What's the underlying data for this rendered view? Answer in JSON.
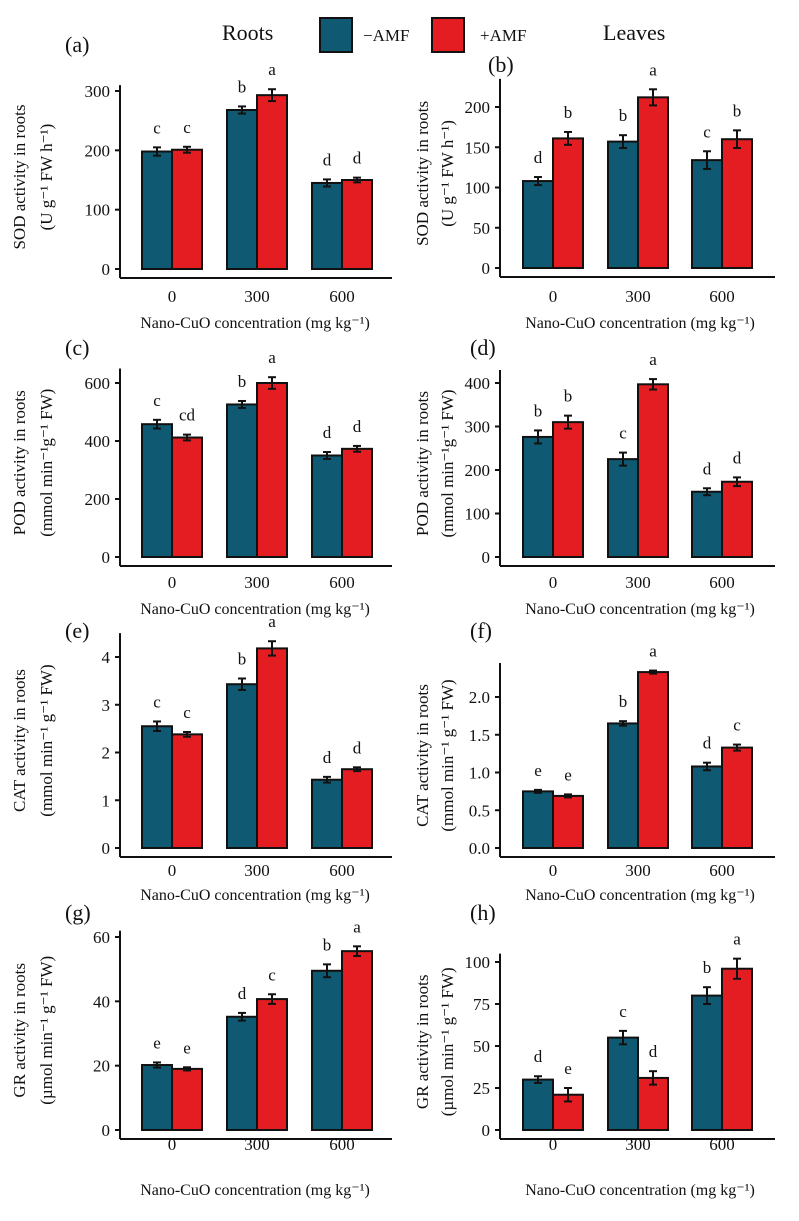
{
  "legend": {
    "roots_label": "Roots",
    "leaves_label": "Leaves",
    "series": [
      {
        "name": "−AMF",
        "color": "#0f5a72"
      },
      {
        "name": "+AMF",
        "color": "#e41d22"
      }
    ]
  },
  "chart_data": [
    {
      "panel": "(a)",
      "type": "bar",
      "ylabel": [
        "SOD activity in roots",
        "(U g⁻¹ FW h⁻¹)"
      ],
      "xlabel": "Nano-CuO concentration (mg kg⁻¹)",
      "categories": [
        "0",
        "300",
        "600"
      ],
      "yticks": [
        0,
        100,
        200,
        300
      ],
      "ylim": [
        0,
        310
      ],
      "series": [
        {
          "name": "−AMF",
          "values": [
            198,
            268,
            145
          ],
          "errors": [
            7,
            6,
            6
          ],
          "letters": [
            "c",
            "b",
            "d"
          ]
        },
        {
          "name": "+AMF",
          "values": [
            201,
            293,
            150
          ],
          "errors": [
            5,
            10,
            4
          ],
          "letters": [
            "c",
            "a",
            "d"
          ]
        }
      ]
    },
    {
      "panel": "(b)",
      "type": "bar",
      "ylabel": [
        "SOD activity in roots",
        "(U g⁻¹ FW h⁻¹)"
      ],
      "xlabel": "Nano-CuO concentration (mg kg⁻¹)",
      "categories": [
        "0",
        "300",
        "600"
      ],
      "yticks": [
        0,
        50,
        100,
        150,
        200
      ],
      "ylim": [
        0,
        235
      ],
      "series": [
        {
          "name": "−AMF",
          "values": [
            108,
            157,
            134
          ],
          "errors": [
            5,
            8,
            11
          ],
          "letters": [
            "d",
            "b",
            "c"
          ]
        },
        {
          "name": "+AMF",
          "values": [
            161,
            212,
            160
          ],
          "errors": [
            8,
            10,
            11
          ],
          "letters": [
            "b",
            "a",
            "b"
          ]
        }
      ]
    },
    {
      "panel": "(c)",
      "type": "bar",
      "ylabel": [
        "POD activity in roots",
        "(mmol min⁻¹g⁻¹ FW)"
      ],
      "xlabel": "Nano-CuO concentration (mg kg⁻¹)",
      "categories": [
        "0",
        "300",
        "600"
      ],
      "yticks": [
        0,
        200,
        400,
        600
      ],
      "ylim": [
        0,
        650
      ],
      "series": [
        {
          "name": "−AMF",
          "values": [
            458,
            526,
            350
          ],
          "errors": [
            15,
            12,
            12
          ],
          "letters": [
            "c",
            "b",
            "d"
          ]
        },
        {
          "name": "+AMF",
          "values": [
            412,
            600,
            373
          ],
          "errors": [
            10,
            20,
            10
          ],
          "letters": [
            "cd",
            "a",
            "d"
          ]
        }
      ]
    },
    {
      "panel": "(d)",
      "type": "bar",
      "ylabel": [
        "POD activity in roots",
        "(mmol min⁻¹g⁻¹ FW)"
      ],
      "xlabel": "Nano-CuO concentration (mg kg⁻¹)",
      "categories": [
        "0",
        "300",
        "600"
      ],
      "yticks": [
        0,
        100,
        200,
        300,
        400
      ],
      "ylim": [
        0,
        430
      ],
      "series": [
        {
          "name": "−AMF",
          "values": [
            276,
            225,
            150
          ],
          "errors": [
            15,
            15,
            8
          ],
          "letters": [
            "b",
            "c",
            "d"
          ]
        },
        {
          "name": "+AMF",
          "values": [
            310,
            397,
            173
          ],
          "errors": [
            15,
            12,
            10
          ],
          "letters": [
            "b",
            "a",
            "d"
          ]
        }
      ]
    },
    {
      "panel": "(e)",
      "type": "bar",
      "ylabel": [
        "CAT activity in roots",
        "(mmol min⁻¹ g⁻¹ FW)"
      ],
      "xlabel": "Nano-CuO concentration (mg kg⁻¹)",
      "categories": [
        "0",
        "300",
        "600"
      ],
      "yticks": [
        0,
        1,
        2,
        3,
        4
      ],
      "ylim": [
        0,
        4.5
      ],
      "series": [
        {
          "name": "−AMF",
          "values": [
            2.55,
            3.43,
            1.43
          ],
          "errors": [
            0.1,
            0.12,
            0.06
          ],
          "letters": [
            "c",
            "b",
            "d"
          ]
        },
        {
          "name": "+AMF",
          "values": [
            2.38,
            4.18,
            1.65
          ],
          "errors": [
            0.05,
            0.15,
            0.04
          ],
          "letters": [
            "c",
            "a",
            "d"
          ]
        }
      ]
    },
    {
      "panel": "(f)",
      "type": "bar",
      "ylabel": [
        "CAT activity in roots",
        "(mmol min⁻¹ g⁻¹ FW)"
      ],
      "xlabel": "Nano-CuO concentration (mg kg⁻¹)",
      "categories": [
        "0",
        "300",
        "600"
      ],
      "yticks": [
        "0.0",
        "0.5",
        "1.0",
        "1.5",
        "2.0"
      ],
      "ylim": [
        0,
        2.45
      ],
      "series": [
        {
          "name": "−AMF",
          "values": [
            0.75,
            1.65,
            1.08
          ],
          "errors": [
            0.02,
            0.03,
            0.05
          ],
          "letters": [
            "e",
            "b",
            "d"
          ]
        },
        {
          "name": "+AMF",
          "values": [
            0.69,
            2.33,
            1.33
          ],
          "errors": [
            0.02,
            0.02,
            0.04
          ],
          "letters": [
            "e",
            "a",
            "c"
          ]
        }
      ]
    },
    {
      "panel": "(g)",
      "type": "bar",
      "ylabel": [
        "GR  activity  in roots",
        "(µmol min⁻¹ g⁻¹ FW)"
      ],
      "xlabel": "Nano-CuO concentration (mg kg⁻¹)",
      "categories": [
        "0",
        "300",
        "600"
      ],
      "yticks": [
        0,
        20,
        40,
        60
      ],
      "ylim": [
        0,
        62
      ],
      "series": [
        {
          "name": "−AMF",
          "values": [
            20.2,
            35.2,
            49.5
          ],
          "errors": [
            0.8,
            1.2,
            2
          ],
          "letters": [
            "e",
            "d",
            "b"
          ]
        },
        {
          "name": "+AMF",
          "values": [
            19,
            40.7,
            55.6
          ],
          "errors": [
            0.5,
            1.5,
            1.5
          ],
          "letters": [
            "e",
            "c",
            "a"
          ]
        }
      ]
    },
    {
      "panel": "(h)",
      "type": "bar",
      "ylabel": [
        "GR  activity  in roots",
        "(µmol min⁻¹ g⁻¹ FW)"
      ],
      "xlabel": "Nano-CuO concentration (mg kg⁻¹)",
      "categories": [
        "0",
        "300",
        "600"
      ],
      "yticks": [
        0,
        25,
        50,
        75,
        100
      ],
      "ylim": [
        0,
        105
      ],
      "series": [
        {
          "name": "−AMF",
          "values": [
            30,
            55,
            80
          ],
          "errors": [
            2,
            4,
            5
          ],
          "letters": [
            "d",
            "c",
            "b"
          ]
        },
        {
          "name": "+AMF",
          "values": [
            21,
            31,
            96
          ],
          "errors": [
            4,
            4,
            6
          ],
          "letters": [
            "e",
            "d",
            "a"
          ]
        }
      ]
    }
  ]
}
